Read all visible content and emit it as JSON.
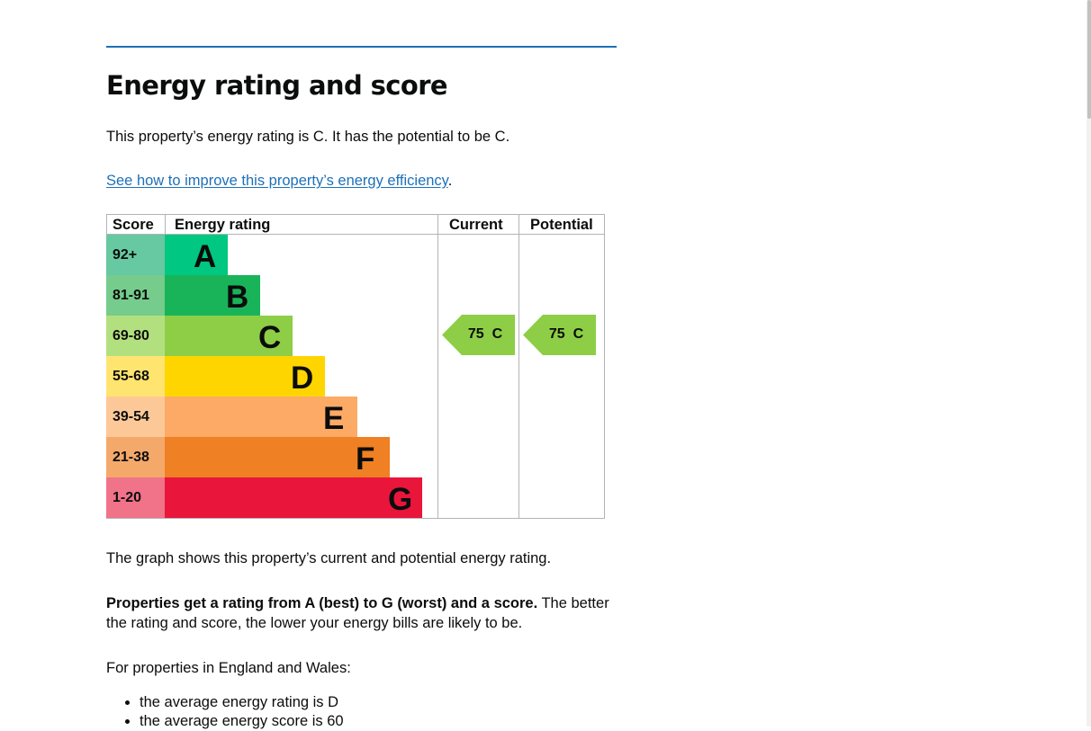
{
  "section": {
    "title": "Energy rating and score",
    "summary": "This property’s energy rating is C. It has the potential to be C.",
    "improve_link": "See how to improve this property’s energy efficiency",
    "improve_link_suffix": "."
  },
  "graph": {
    "headers": {
      "score": "Score",
      "rating": "Energy rating",
      "current": "Current",
      "potential": "Potential"
    },
    "bands": [
      {
        "score": "92+",
        "letter": "A",
        "band_color": "#00c781",
        "score_color": "#67c9a1"
      },
      {
        "score": "81-91",
        "letter": "B",
        "band_color": "#19b459",
        "score_color": "#75cc8c"
      },
      {
        "score": "69-80",
        "letter": "C",
        "band_color": "#8dce46",
        "score_color": "#b3e07f"
      },
      {
        "score": "55-68",
        "letter": "D",
        "band_color": "#ffd500",
        "score_color": "#ffe470"
      },
      {
        "score": "39-54",
        "letter": "E",
        "band_color": "#fcaa65",
        "score_color": "#fdc898"
      },
      {
        "score": "21-38",
        "letter": "F",
        "band_color": "#ef8023",
        "score_color": "#f4a96b"
      },
      {
        "score": "1-20",
        "letter": "G",
        "band_color": "#e9153b",
        "score_color": "#f07389"
      }
    ],
    "current": {
      "score": "75",
      "letter": "C",
      "label": "75  C",
      "color": "#8dce46"
    },
    "potential": {
      "score": "75",
      "letter": "C",
      "label": "75  C",
      "color": "#8dce46"
    }
  },
  "explanation": {
    "graph_note": "The graph shows this property’s current and potential energy rating.",
    "ratings_bold": "Properties get a rating from A (best) to G (worst) and a score.",
    "ratings_rest": " The better",
    "ratings_line2": "the rating and score, the lower your energy bills are likely to be.",
    "averages_intro": "For properties in England and Wales:",
    "averages": [
      "the average energy rating is D",
      "the average energy score is 60"
    ]
  }
}
